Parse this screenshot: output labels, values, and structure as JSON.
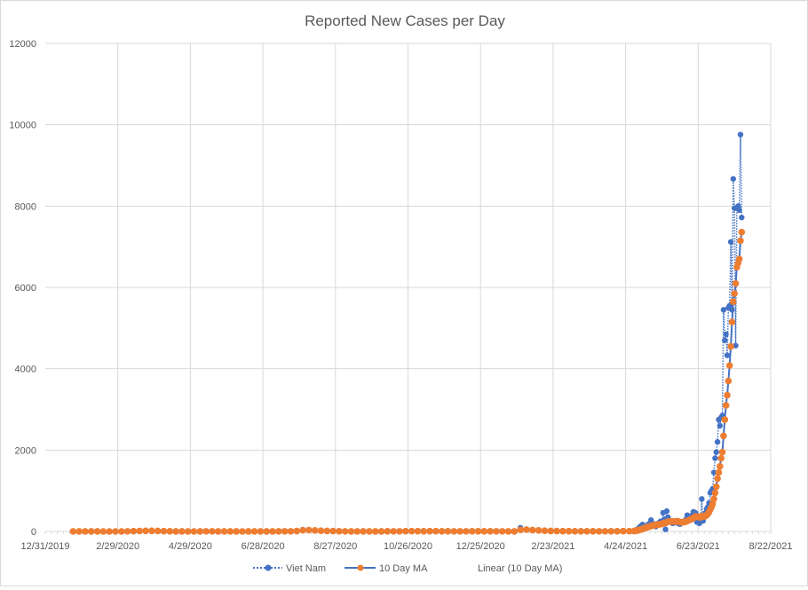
{
  "chart_data": {
    "type": "scatter",
    "title": "Reported New Cases per Day",
    "xlabel": "",
    "ylabel": "",
    "xlim": [
      "2019-12-31",
      "2021-08-22"
    ],
    "ylim": [
      0,
      12000
    ],
    "y_ticks": [
      0,
      2000,
      4000,
      6000,
      8000,
      10000,
      12000
    ],
    "y_tick_labels": [
      "0",
      "2000",
      "4000",
      "6000",
      "8000",
      "10000",
      "12000"
    ],
    "x_tick_labels": [
      "12/31/2019",
      "2/29/2020",
      "4/29/2020",
      "6/28/2020",
      "8/27/2020",
      "10/26/2020",
      "12/25/2020",
      "2/23/2021",
      "4/24/2021",
      "6/23/2021",
      "8/22/2021"
    ],
    "x_tick_step_days": 60,
    "grid": true,
    "legend_position": "bottom",
    "legend": [
      {
        "name": "Viet Nam",
        "style": "dotted line with markers"
      },
      {
        "name": "10 Day MA",
        "style": "solid line with markers"
      },
      {
        "name": "Linear (10 Day MA)",
        "style": "trendline"
      }
    ],
    "colors": {
      "viet_nam": "#4472c4",
      "ma_marker": "#ed7d31",
      "ma_line": "#4472c4",
      "grid": "#d9d9d9",
      "text": "#595959"
    },
    "early": {
      "start": "2020-01-23",
      "step_days": 5,
      "viet_nam": [
        2,
        0,
        1,
        2,
        1,
        0,
        0,
        0,
        0,
        5,
        8,
        15,
        20,
        15,
        10,
        5,
        2,
        1,
        0,
        0,
        0,
        1,
        5,
        3,
        2,
        1,
        2,
        0,
        0,
        1,
        3,
        2,
        2,
        1,
        5,
        2,
        3,
        15,
        45,
        35,
        20,
        15,
        10,
        8,
        4,
        3,
        2,
        1,
        2,
        1,
        3,
        2,
        5,
        3,
        2,
        8,
        10,
        5,
        4,
        8,
        6,
        5,
        3,
        2,
        4,
        3,
        5,
        6,
        3,
        4,
        2,
        3,
        2,
        1,
        90,
        50,
        35,
        20,
        15,
        10,
        8,
        5,
        6,
        4,
        3,
        5,
        4,
        3,
        2,
        6,
        5,
        8,
        10
      ],
      "ma": [
        1,
        1,
        1,
        1,
        1,
        0,
        0,
        0,
        0,
        3,
        6,
        11,
        16,
        16,
        12,
        7,
        4,
        2,
        1,
        0,
        0,
        1,
        3,
        3,
        2,
        1,
        1,
        1,
        0,
        1,
        2,
        2,
        2,
        2,
        3,
        3,
        3,
        10,
        30,
        33,
        25,
        17,
        12,
        9,
        5,
        3,
        2,
        2,
        2,
        1,
        2,
        2,
        4,
        3,
        3,
        6,
        8,
        6,
        5,
        6,
        6,
        5,
        4,
        3,
        3,
        3,
        4,
        5,
        4,
        4,
        3,
        3,
        2,
        2,
        40,
        45,
        35,
        25,
        17,
        12,
        9,
        6,
        6,
        5,
        4,
        4,
        4,
        3,
        3,
        4,
        5,
        6,
        8
      ]
    },
    "late": {
      "start": "2021-05-01",
      "step_days": 1,
      "viet_nam": [
        20,
        30,
        40,
        60,
        80,
        120,
        100,
        170,
        130,
        90,
        110,
        150,
        180,
        120,
        280,
        200,
        150,
        180,
        120,
        160,
        200,
        220,
        250,
        190,
        460,
        300,
        50,
        500,
        350,
        260,
        230,
        250,
        200,
        230,
        220,
        240,
        210,
        190,
        180,
        210,
        230,
        220,
        250,
        300,
        400,
        320,
        350,
        380,
        300,
        480,
        470,
        450,
        230,
        250,
        200,
        350,
        800,
        260,
        350,
        450,
        550,
        600,
        700,
        950,
        1000,
        1050,
        1450,
        1800,
        1950,
        2200,
        2750,
        2600,
        2800,
        2850,
        5450,
        4700,
        4850,
        4330,
        5500,
        5550,
        7120,
        5450,
        8670,
        7950,
        4570,
        7950,
        8000,
        7900,
        9760,
        7720
      ],
      "ma": [
        10,
        15,
        20,
        25,
        35,
        45,
        55,
        65,
        75,
        85,
        95,
        105,
        115,
        120,
        135,
        145,
        150,
        155,
        160,
        165,
        170,
        175,
        180,
        180,
        200,
        210,
        205,
        230,
        240,
        245,
        245,
        245,
        245,
        240,
        245,
        250,
        250,
        240,
        230,
        225,
        225,
        230,
        235,
        245,
        260,
        270,
        285,
        300,
        310,
        330,
        350,
        370,
        360,
        355,
        350,
        345,
        380,
        370,
        370,
        380,
        400,
        430,
        480,
        540,
        600,
        680,
        800,
        950,
        1100,
        1300,
        1450,
        1600,
        1800,
        1950,
        2350,
        2750,
        3100,
        3350,
        3700,
        4080,
        4550,
        5150,
        5650,
        5850,
        6100,
        6500,
        6600,
        6700,
        7150,
        7360
      ]
    }
  }
}
